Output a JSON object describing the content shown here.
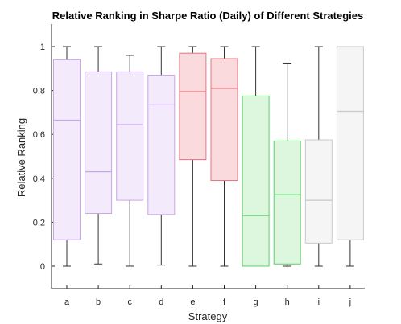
{
  "chart_data": {
    "type": "box",
    "title": "Relative Ranking in Sharpe Ratio (Daily) of Different Strategies",
    "xlabel": "Strategy",
    "ylabel": "Relative Ranking",
    "ylim": [
      -0.1,
      1.1
    ],
    "yticks": [
      0,
      0.2,
      0.4,
      0.6,
      0.8,
      1
    ],
    "ytick_labels": [
      "0",
      "0.2",
      "0.4",
      "0.6",
      "0.8",
      "1"
    ],
    "grid": false,
    "categories": [
      "a",
      "b",
      "c",
      "d",
      "e",
      "f",
      "g",
      "h",
      "i",
      "j"
    ],
    "boxes": [
      {
        "category": "a",
        "whisker_low": 0.0,
        "q1": 0.12,
        "median": 0.665,
        "q3": 0.94,
        "whisker_high": 1.0,
        "color": "#c9a6e8",
        "fill": "#f3ebfb"
      },
      {
        "category": "b",
        "whisker_low": 0.01,
        "q1": 0.24,
        "median": 0.43,
        "q3": 0.885,
        "whisker_high": 1.0,
        "color": "#c9a6e8",
        "fill": "#f3ebfb"
      },
      {
        "category": "c",
        "whisker_low": 0.0,
        "q1": 0.3,
        "median": 0.645,
        "q3": 0.885,
        "whisker_high": 0.96,
        "color": "#c9a6e8",
        "fill": "#f3ebfb"
      },
      {
        "category": "d",
        "whisker_low": 0.005,
        "q1": 0.235,
        "median": 0.735,
        "q3": 0.87,
        "whisker_high": 1.0,
        "color": "#c9a6e8",
        "fill": "#f3ebfb"
      },
      {
        "category": "e",
        "whisker_low": 0.0,
        "q1": 0.485,
        "median": 0.795,
        "q3": 0.97,
        "whisker_high": 1.0,
        "color": "#e8737e",
        "fill": "#fadadd"
      },
      {
        "category": "f",
        "whisker_low": 0.0,
        "q1": 0.39,
        "median": 0.81,
        "q3": 0.945,
        "whisker_high": 1.0,
        "color": "#e8737e",
        "fill": "#fadadd"
      },
      {
        "category": "g",
        "whisker_low": 0.0,
        "q1": 0.0,
        "median": 0.23,
        "q3": 0.775,
        "whisker_high": 1.0,
        "color": "#5ccf6a",
        "fill": "#dcf7de"
      },
      {
        "category": "h",
        "whisker_low": 0.0,
        "q1": 0.01,
        "median": 0.325,
        "q3": 0.57,
        "whisker_high": 0.925,
        "color": "#5ccf6a",
        "fill": "#dcf7de"
      },
      {
        "category": "i",
        "whisker_low": 0.0,
        "q1": 0.105,
        "median": 0.3,
        "q3": 0.575,
        "whisker_high": 1.0,
        "color": "#c8c8c8",
        "fill": "#f5f5f5"
      },
      {
        "category": "j",
        "whisker_low": 0.0,
        "q1": 0.12,
        "median": 0.705,
        "q3": 1.0,
        "whisker_high": 1.0,
        "color": "#c8c8c8",
        "fill": "#f5f5f5"
      }
    ]
  }
}
